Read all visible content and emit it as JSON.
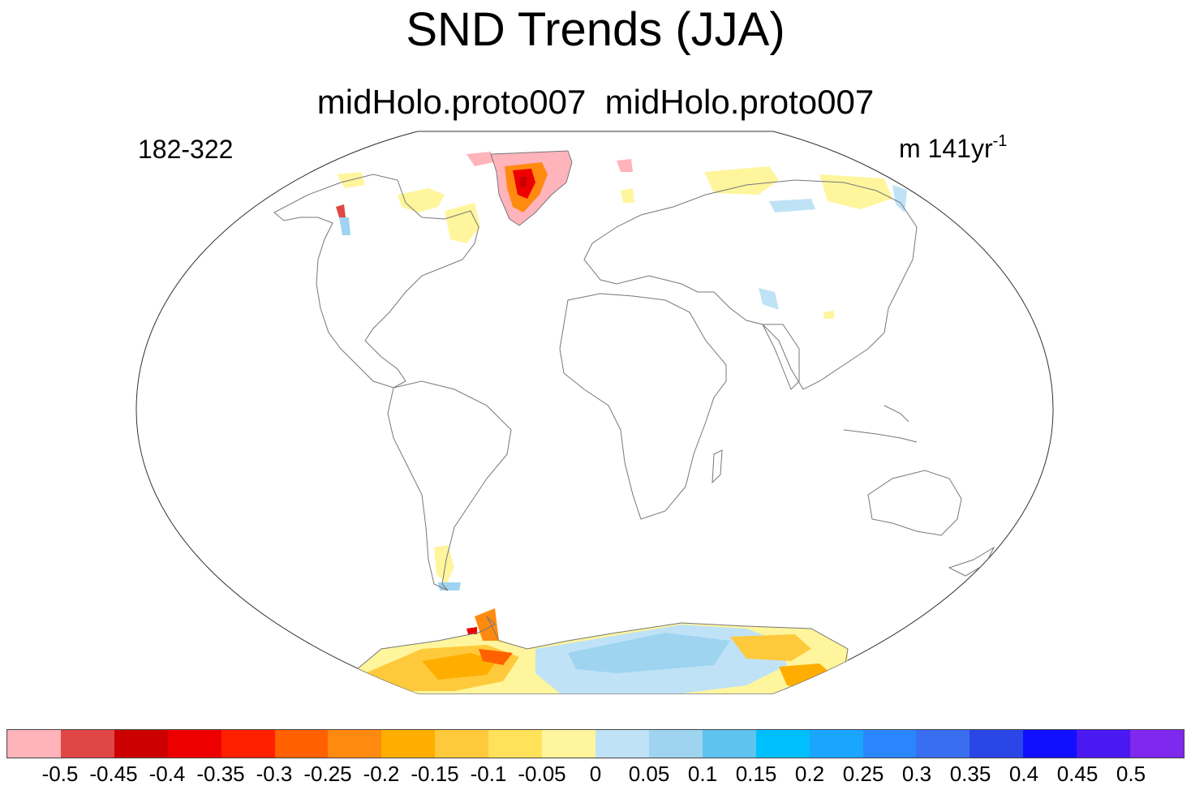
{
  "title": "SND Trends (JJA)",
  "subtitle": "midHolo.proto007  midHolo.proto007",
  "left_label": "182-322",
  "right_label": {
    "units": "m 141yr",
    "exponent": "-1"
  },
  "colorbar": {
    "colors": [
      "#ffb3ba",
      "#e04646",
      "#cc0000",
      "#ee0000",
      "#ff2000",
      "#ff6000",
      "#ff8a10",
      "#ffae00",
      "#ffc93c",
      "#ffe25a",
      "#fff59d",
      "#c0e2f7",
      "#9ed4f0",
      "#5ec3ee",
      "#00bfff",
      "#1aa6ff",
      "#2a86ff",
      "#3a6ef0",
      "#2b46e6",
      "#1010ff",
      "#4a18f0",
      "#7f28ee"
    ],
    "labels": [
      "-0.5",
      "-0.45",
      "-0.4",
      "-0.35",
      "-0.3",
      "-0.25",
      "-0.2",
      "-0.15",
      "-0.1",
      "-0.05",
      "0",
      "0.05",
      "0.1",
      "0.15",
      "0.2",
      "0.25",
      "0.3",
      "0.35",
      "0.4",
      "0.45",
      "0.5"
    ]
  }
}
